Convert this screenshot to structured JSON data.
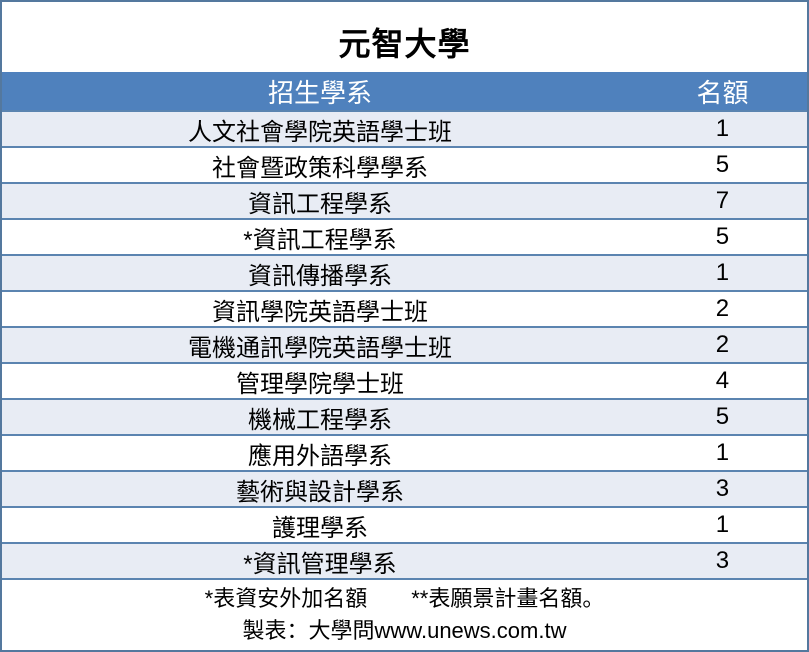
{
  "chart_data": {
    "type": "table",
    "title": "元智大學",
    "columns": [
      "招生學系",
      "名額"
    ],
    "rows": [
      [
        "人文社會學院英語學士班",
        "1"
      ],
      [
        "社會暨政策科學學系",
        "5"
      ],
      [
        "資訊工程學系",
        "7"
      ],
      [
        "*資訊工程學系",
        "5"
      ],
      [
        "資訊傳播學系",
        "1"
      ],
      [
        "資訊學院英語學士班",
        "2"
      ],
      [
        "電機通訊學院英語學士班",
        "2"
      ],
      [
        "管理學院學士班",
        "4"
      ],
      [
        "機械工程學系",
        "5"
      ],
      [
        "應用外語學系",
        "1"
      ],
      [
        "藝術與設計學系",
        "3"
      ],
      [
        "護理學系",
        "1"
      ],
      [
        "*資訊管理學系",
        "3"
      ]
    ],
    "notes": [
      "*表資安外加名額　　**表願景計畫名額。",
      "製表：大學問www.unews.com.tw"
    ]
  },
  "footer": {
    "note": "*表資安外加名額　　**表願景計畫名額。",
    "credit": "製表：大學問www.unews.com.tw"
  },
  "colors": {
    "header_bg": "#4F81BD",
    "header_text": "#FFFFFF",
    "row_bg": "#FFFFFF",
    "row_alt_bg": "#E8ECF4",
    "border": "#5B84B0",
    "outer_border": "#54789E",
    "text": "#000000",
    "title_text": "#000000"
  }
}
